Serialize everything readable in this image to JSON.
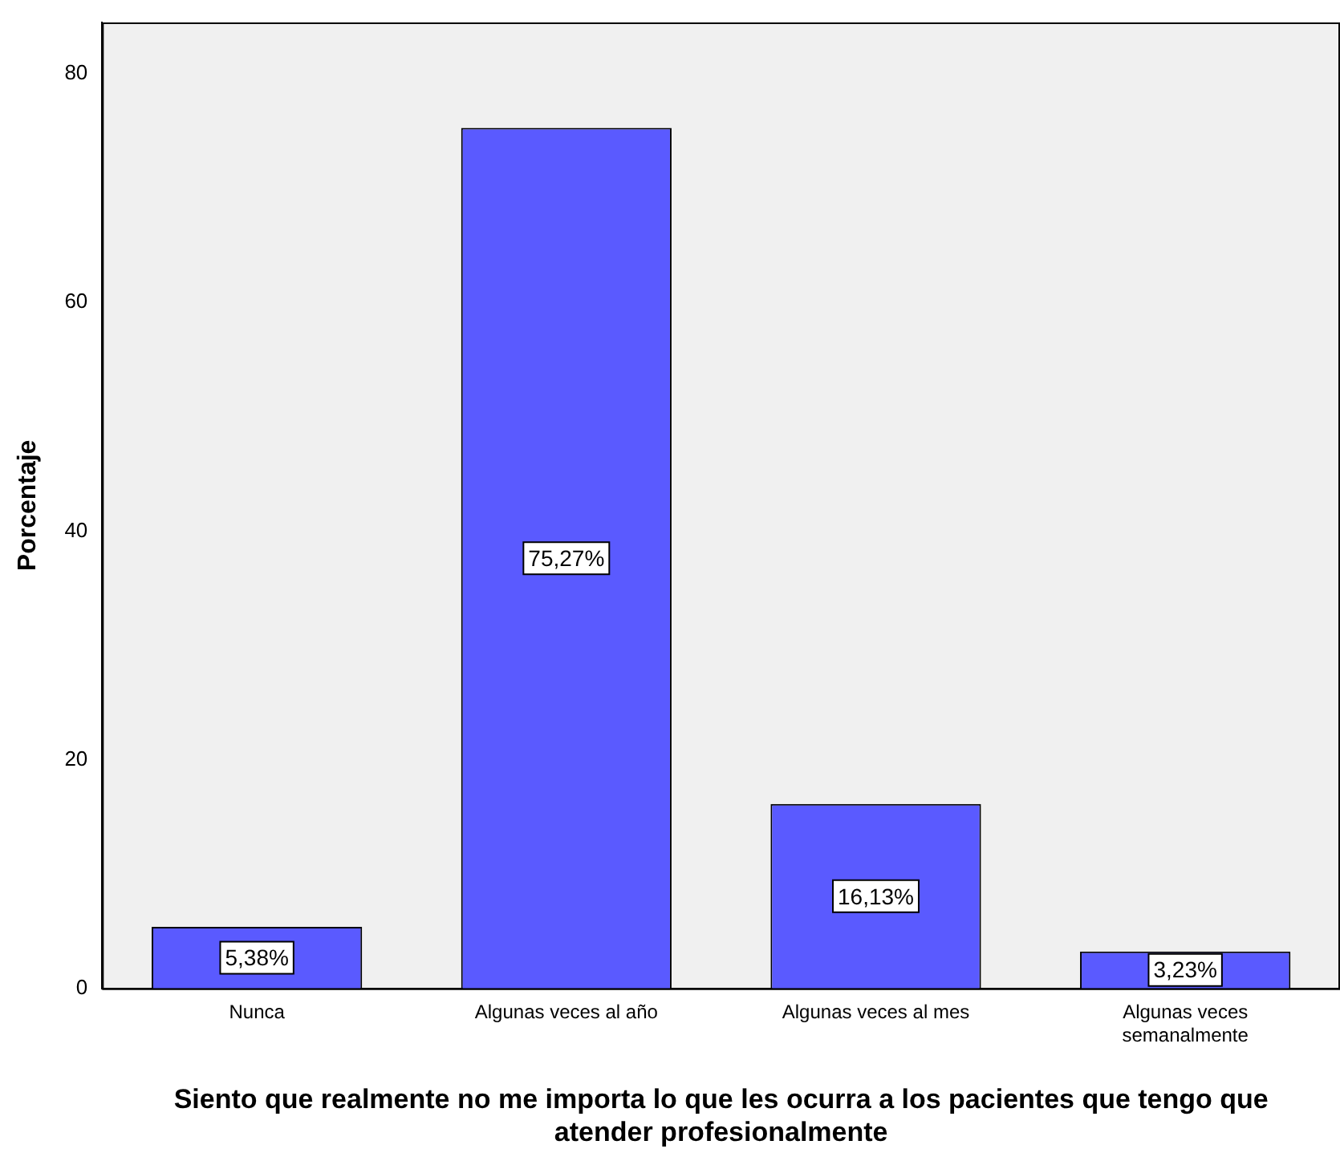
{
  "chart_data": {
    "type": "bar",
    "xlabel": "Siento que realmente no me importa lo que les ocurra a los pacientes que tengo que atender profesionalmente",
    "ylabel": "Porcentaje",
    "categories": [
      "Nunca",
      "Algunas veces al año",
      "Algunas veces al mes",
      "Algunas veces semanalmente"
    ],
    "values": [
      5.38,
      75.27,
      16.13,
      3.23
    ],
    "value_labels": [
      "5,38%",
      "75,27%",
      "16,13%",
      "3,23%"
    ],
    "color": "#5a5aff",
    "ylim": [
      0,
      84.5
    ],
    "yticks": [
      0,
      20,
      40,
      60,
      80
    ],
    "grid": false,
    "legend": false
  }
}
